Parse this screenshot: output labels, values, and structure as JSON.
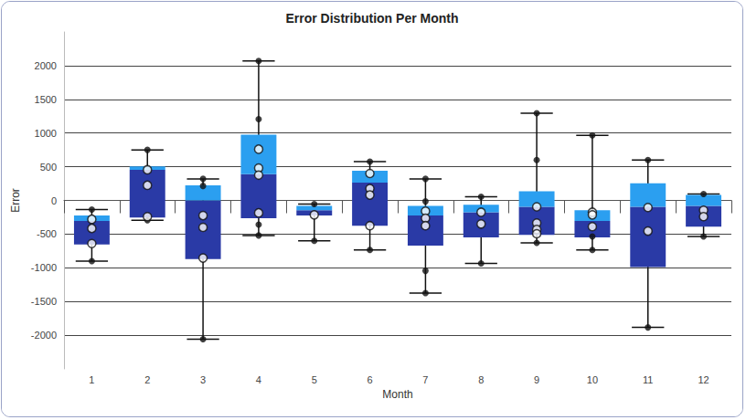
{
  "chart_data": {
    "type": "boxplot",
    "title": "Error Distribution Per Month",
    "xlabel": "Month",
    "ylabel": "Error",
    "categories": [
      "1",
      "2",
      "3",
      "4",
      "5",
      "6",
      "7",
      "8",
      "9",
      "10",
      "11",
      "12"
    ],
    "boxes": [
      {
        "min": -900,
        "q1": -655,
        "median": -305,
        "q3": -225,
        "max": -135
      },
      {
        "min": -295,
        "q1": -255,
        "median": 455,
        "q3": 505,
        "max": 750
      },
      {
        "min": -2060,
        "q1": -870,
        "median": 0,
        "q3": 225,
        "max": 320
      },
      {
        "min": -520,
        "q1": -265,
        "median": 390,
        "q3": 975,
        "max": 2070
      },
      {
        "min": -600,
        "q1": -225,
        "median": -145,
        "q3": -80,
        "max": -55
      },
      {
        "min": -735,
        "q1": -375,
        "median": 265,
        "q3": 440,
        "max": 575
      },
      {
        "min": -1375,
        "q1": -670,
        "median": -225,
        "q3": -80,
        "max": 320
      },
      {
        "min": -935,
        "q1": -550,
        "median": -175,
        "q3": -65,
        "max": 55
      },
      {
        "min": -630,
        "q1": -510,
        "median": -95,
        "q3": 135,
        "max": 1295
      },
      {
        "min": -735,
        "q1": -550,
        "median": -305,
        "q3": -145,
        "max": 965
      },
      {
        "min": -1885,
        "q1": -990,
        "median": -95,
        "q3": 255,
        "max": 600
      },
      {
        "min": -535,
        "q1": -390,
        "median": -80,
        "q3": 80,
        "max": 95
      }
    ],
    "points": [
      [
        -280,
        -415,
        -640
      ],
      [
        455,
        225,
        -240
      ],
      [
        -225,
        -400,
        -855
      ],
      [
        760,
        480,
        375,
        -185
      ],
      [
        -215
      ],
      [
        400,
        175,
        80,
        -375
      ],
      [
        -160,
        -265,
        -375
      ],
      [
        -175,
        -350
      ],
      [
        -95,
        -335,
        -430,
        -495
      ],
      [
        -175,
        -215,
        -390
      ],
      [
        -105,
        -455
      ],
      [
        -145,
        -240
      ]
    ],
    "black_points": [
      [
        -135,
        -900
      ],
      [
        750,
        -295
      ],
      [
        320,
        215,
        -2060
      ],
      [
        2070,
        1205,
        -360,
        -520
      ],
      [
        -55,
        -600
      ],
      [
        575,
        -735
      ],
      [
        320,
        -15,
        -1045,
        -1375
      ],
      [
        55,
        -935
      ],
      [
        1295,
        600,
        -630
      ],
      [
        965,
        -535,
        -735
      ],
      [
        600,
        -1885
      ],
      [
        95,
        -535
      ]
    ],
    "colors": [
      "#2a3aa6",
      "#2b9ff0"
    ],
    "ylim": [
      -2500,
      2500
    ],
    "yticks": [
      -2000,
      -1500,
      -1000,
      -500,
      0,
      500,
      1000,
      1500,
      2000
    ],
    "grid": true
  }
}
